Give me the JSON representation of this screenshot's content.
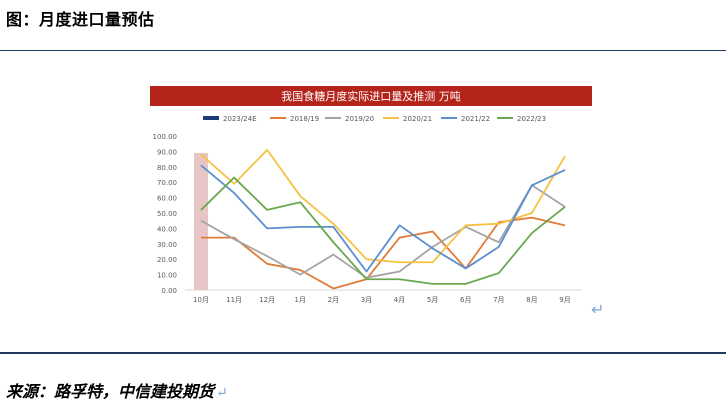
{
  "figure": {
    "title": "图：月度进口量预估",
    "source": "来源：路孚特，中信建投期货",
    "return_glyph": "↵"
  },
  "colors": {
    "banner": "#b5241b",
    "rule": "#1f3a5f",
    "highlight": "#e8c5c5"
  },
  "chart_data": {
    "type": "line",
    "title": "我国食糖月度实际进口量及推测 万吨",
    "categories": [
      "10月",
      "11月",
      "12月",
      "1月",
      "2月",
      "3月",
      "4月",
      "5月",
      "6月",
      "7月",
      "8月",
      "9月"
    ],
    "ylim": [
      0,
      100
    ],
    "yticks": [
      "0.00",
      "10.00",
      "20.00",
      "30.00",
      "40.00",
      "50.00",
      "60.00",
      "70.00",
      "80.00",
      "90.00",
      "100.00"
    ],
    "grid": false,
    "legend": "top",
    "series": [
      {
        "name": "2023/24E",
        "color": "#1f3a78",
        "values": [
          89,
          null,
          null,
          null,
          null,
          null,
          null,
          null,
          null,
          null,
          null,
          null
        ],
        "style": "bar"
      },
      {
        "name": "2018/19",
        "color": "#e07b39",
        "values": [
          34,
          34,
          17,
          13,
          1,
          7,
          34,
          38,
          14,
          44,
          47,
          42
        ]
      },
      {
        "name": "2019/20",
        "color": "#a5a5a5",
        "values": [
          45,
          33,
          22,
          10,
          23,
          8,
          12,
          28,
          41,
          31,
          68,
          54
        ]
      },
      {
        "name": "2020/21",
        "color": "#f5c242",
        "values": [
          88,
          69,
          91,
          61,
          43,
          20,
          18,
          18,
          42,
          43,
          50,
          87
        ]
      },
      {
        "name": "2021/22",
        "color": "#5b8fd0",
        "values": [
          81,
          63,
          40,
          41,
          41,
          12,
          42,
          27,
          14,
          28,
          68,
          78
        ]
      },
      {
        "name": "2022/23",
        "color": "#6aa84f",
        "values": [
          52,
          73,
          52,
          57,
          31,
          7,
          7,
          4,
          4,
          11,
          37,
          54
        ]
      }
    ]
  }
}
